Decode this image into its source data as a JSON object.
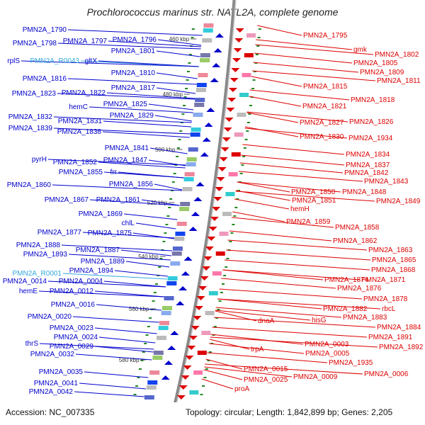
{
  "title": "Prochlorococcus marinus str. NATL2A, complete genome",
  "accession": "Accession: NC_007335",
  "summary": "Topology: circular; Length: 1,842,899 bp; Genes: 2,205",
  "colors": {
    "left": "#0000cc",
    "right": "#dd0000",
    "rna": "#33aadd",
    "backbone": "#888888",
    "tick": "#228822"
  },
  "kbp_ticks": [
    "460 kbp",
    "480 kbp",
    "500 kbp",
    "520 kbp",
    "540 kbp",
    "560 kbp",
    "580 kbp"
  ],
  "left_labels": [
    "PMN2A_1790",
    "PMN2A_1798",
    "PMN2A_1797",
    "PMN2A_1796",
    "PMN2A_1801",
    "rplS",
    "PMN2A_R0043",
    "gltX",
    "PMN2A_1810",
    "PMN2A_1816",
    "PMN2A_1817",
    "PMN2A_1823",
    "PMN2A_1822",
    "hemC",
    "PMN2A_1825",
    "PMN2A_1829",
    "PMN2A_1832",
    "PMN2A_1831",
    "PMN2A_1839",
    "PMN2A_1838",
    "PMN2A_1841",
    "pyrH",
    "PMN2A_1847",
    "PMN2A_1852",
    "PMN2A_1855",
    "frr",
    "PMN2A_1860",
    "PMN2A_1856",
    "PMN2A_1867",
    "PMN2A_1861",
    "PMN2A_1869",
    "chlL",
    "PMN2A_1877",
    "PMN2A_1875",
    "PMN2A_1888",
    "PMN2A_1887",
    "PMN2A_1893",
    "PMN2A_1889",
    "PMN2A_1894",
    "PMN2A_R0001",
    "PMN2A_0014",
    "PMN2A_0004",
    "hemE",
    "PMN2A_0012",
    "PMN2A_0016",
    "PMN2A_0020",
    "PMN2A_0023",
    "PMN2A_0024",
    "thrS",
    "PMN2A_0029",
    "PMN2A_0032",
    "PMN2A_0035",
    "PMN2A_0041",
    "PMN2A_0042"
  ],
  "right_labels": [
    "PMN2A_1795",
    "gmk",
    "PMN2A_1802",
    "PMN2A_1805",
    "PMN2A_1809",
    "PMN2A_1811",
    "PMN2A_1815",
    "PMN2A_1818",
    "PMN2A_1821",
    "PMN2A_1827",
    "PMN2A_1826",
    "PMN2A_1830",
    "PMN2A_1934",
    "PMN2A_1834",
    "PMN2A_1837",
    "PMN2A_1842",
    "PMN2A_1843",
    "PMN2A_1850",
    "PMN2A_1848",
    "PMN2A_1851",
    "PMN2A_1849",
    "hemH",
    "PMN2A_1859",
    "PMN2A_1858",
    "PMN2A_1862",
    "PMN2A_1863",
    "PMN2A_1865",
    "PMN2A_1868",
    "PMN2A_1874",
    "PMN2A_1871",
    "PMN2A_1876",
    "PMN2A_1878",
    "PMN2A_1882",
    "rbcL",
    "PMN2A_1883",
    "hisG",
    "dnaA",
    "PMN2A_1884",
    "PMN2A_1891",
    "PMN2A_0003",
    "PMN2A_1892",
    "trpA",
    "PMN2A_0005",
    "PMN2A_1935",
    "PMN2A_0015",
    "PMN2A_0006",
    "PMN2A_0009",
    "PMN2A_0025",
    "proA"
  ]
}
